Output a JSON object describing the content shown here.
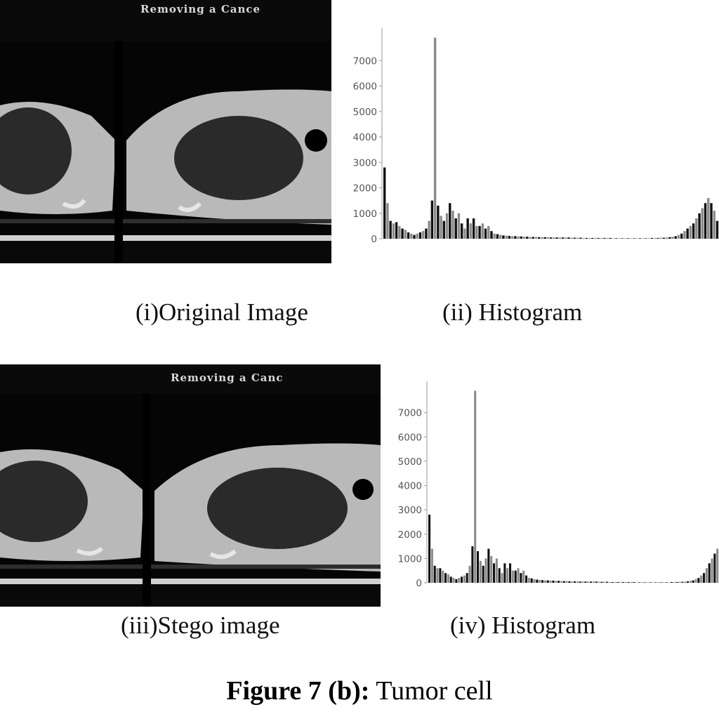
{
  "panels": {
    "original": {
      "overlay_text": "Removing a Cance",
      "caption": "(i)Original Image"
    },
    "hist1": {
      "caption": "(ii) Histogram"
    },
    "stego": {
      "overlay_text": "Removing a Canc",
      "caption": "(iii)Stego image"
    },
    "hist2": {
      "caption": "(iv) Histogram"
    }
  },
  "figure_caption": {
    "label": "Figure 7 (b):",
    "text": " Tumor cell"
  },
  "colors": {
    "ct_background": "#050505",
    "body_tissue": "#b9b9b9",
    "lung": "#2a2a2a",
    "bar_dark": "#111111",
    "bar_gray": "#8a8a8a"
  },
  "chart_data": [
    {
      "type": "bar",
      "title": "",
      "xlabel": "",
      "ylabel": "",
      "ylim": [
        0,
        8000
      ],
      "yticks": [
        0,
        1000,
        2000,
        3000,
        4000,
        5000,
        6000,
        7000
      ],
      "grid": false,
      "values": [
        2800,
        1400,
        700,
        600,
        650,
        500,
        400,
        350,
        250,
        200,
        150,
        200,
        250,
        300,
        400,
        700,
        1500,
        7900,
        1300,
        900,
        700,
        1000,
        1400,
        1100,
        800,
        1000,
        600,
        400,
        800,
        600,
        800,
        500,
        500,
        600,
        400,
        500,
        300,
        200,
        180,
        150,
        130,
        120,
        110,
        100,
        100,
        90,
        90,
        80,
        80,
        70,
        70,
        70,
        60,
        60,
        60,
        60,
        50,
        50,
        50,
        50,
        50,
        50,
        50,
        40,
        40,
        40,
        40,
        30,
        30,
        30,
        30,
        30,
        30,
        30,
        30,
        30,
        30,
        20,
        20,
        20,
        20,
        20,
        20,
        20,
        20,
        20,
        20,
        20,
        20,
        20,
        30,
        30,
        30,
        40,
        40,
        50,
        60,
        80,
        100,
        150,
        200,
        300,
        400,
        500,
        600,
        800,
        1000,
        1200,
        1400,
        1600,
        1400,
        1100,
        700
      ]
    },
    {
      "type": "bar",
      "title": "",
      "xlabel": "",
      "ylabel": "",
      "ylim": [
        0,
        8000
      ],
      "yticks": [
        0,
        1000,
        2000,
        3000,
        4000,
        5000,
        6000,
        7000
      ],
      "grid": false,
      "values": [
        2800,
        1400,
        700,
        600,
        600,
        500,
        400,
        350,
        250,
        200,
        150,
        200,
        250,
        300,
        400,
        700,
        1500,
        7900,
        1300,
        900,
        700,
        1000,
        1400,
        1100,
        800,
        1000,
        600,
        400,
        800,
        600,
        800,
        500,
        500,
        600,
        400,
        500,
        300,
        200,
        180,
        150,
        130,
        120,
        110,
        100,
        100,
        90,
        90,
        80,
        80,
        70,
        70,
        70,
        60,
        60,
        60,
        60,
        50,
        50,
        50,
        50,
        50,
        50,
        50,
        40,
        40,
        40,
        40,
        30,
        30,
        30,
        30,
        30,
        30,
        30,
        30,
        30,
        30,
        20,
        20,
        20,
        20,
        20,
        20,
        20,
        20,
        20,
        20,
        20,
        20,
        20,
        30,
        30,
        30,
        40,
        40,
        50,
        60,
        80,
        100,
        150,
        200,
        300,
        400,
        600,
        800,
        1000,
        1200,
        1400
      ]
    }
  ]
}
